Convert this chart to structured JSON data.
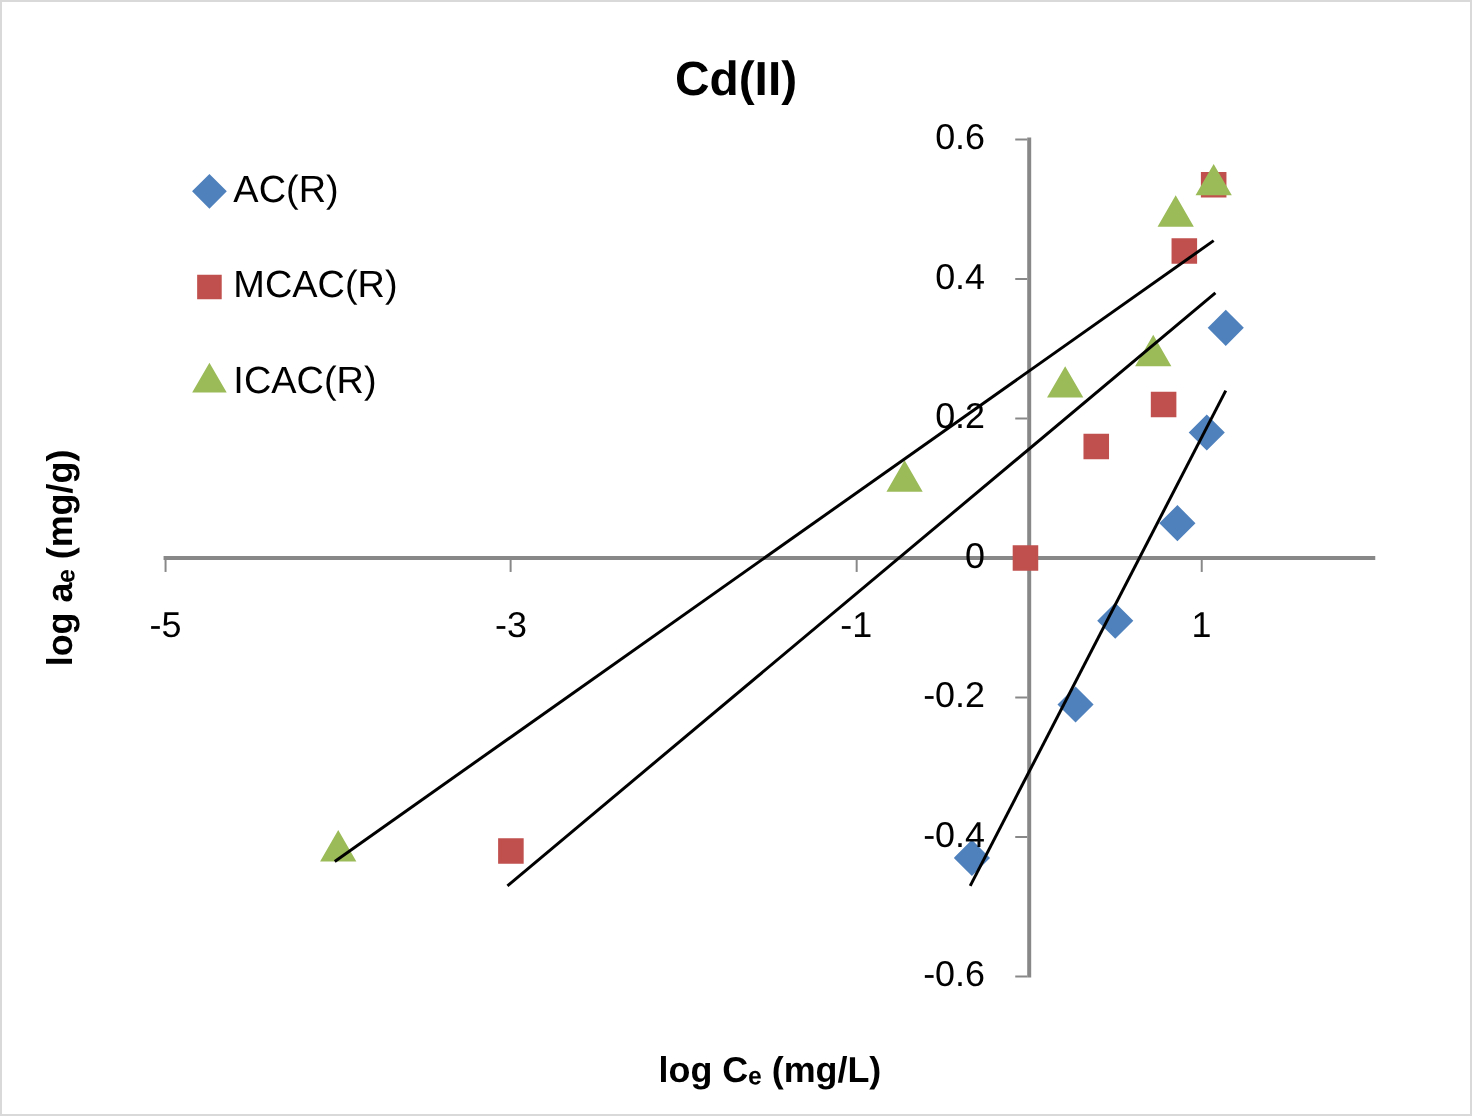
{
  "chart_data": {
    "type": "scatter",
    "title": "Cd(II)",
    "xlabel": "log Cₑ (mg/L)",
    "ylabel": "log aₑ (mg/g)",
    "xlim": [
      -5,
      2
    ],
    "xticks": [
      -5,
      -3,
      -1,
      1
    ],
    "ylim": [
      -0.6,
      0.6
    ],
    "yticks": [
      -0.6,
      -0.4,
      -0.2,
      0,
      0.2,
      0.4,
      0.6
    ],
    "grid": false,
    "legend": "top left",
    "series": [
      {
        "name": "AC(R)",
        "color": "#4f81bd",
        "marker": "diamond",
        "x": [
          -0.33,
          0.27,
          0.5,
          0.86,
          1.03,
          1.14
        ],
        "values": [
          -0.43,
          -0.21,
          -0.09,
          0.05,
          0.18,
          0.33
        ]
      },
      {
        "name": "MCAC(R)",
        "color": "#c0504d",
        "marker": "square",
        "x": [
          -3.0,
          -0.02,
          0.39,
          0.78,
          0.9,
          1.07
        ],
        "values": [
          -0.42,
          0.0,
          0.16,
          0.22,
          0.44,
          0.535
        ]
      },
      {
        "name": "ICAC(R)",
        "color": "#9bbb59",
        "marker": "triangle",
        "x": [
          -4.0,
          -0.72,
          0.21,
          0.72,
          0.85,
          1.07
        ],
        "values": [
          -0.42,
          0.11,
          0.245,
          0.29,
          0.49,
          0.535
        ]
      },
      {
        "type": "line",
        "color": "#000000",
        "marker": "none",
        "x": [
          -0.34,
          1.14
        ],
        "values": [
          -0.47,
          0.24
        ]
      },
      {
        "type": "line",
        "color": "#000000",
        "marker": "none",
        "x": [
          -3.02,
          1.08
        ],
        "values": [
          -0.47,
          0.38
        ]
      },
      {
        "type": "line",
        "color": "#000000",
        "marker": "none",
        "x": [
          -4.02,
          1.07
        ],
        "values": [
          -0.435,
          0.455
        ]
      }
    ]
  }
}
